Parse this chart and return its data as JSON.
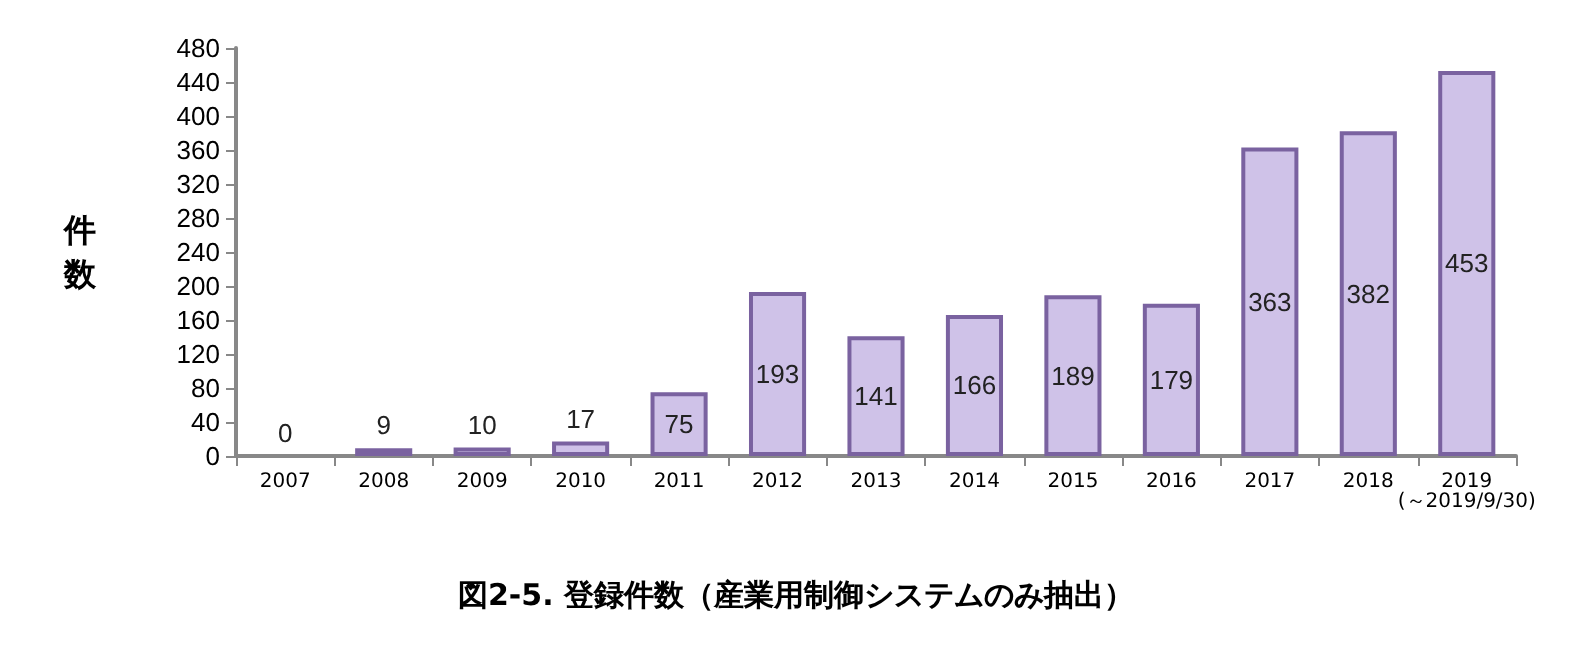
{
  "chart_data": {
    "type": "bar",
    "title": "図2-5. 登録件数（産業用制御システムのみ抽出）",
    "ylabel": "件数",
    "categories": [
      "2007",
      "2008",
      "2009",
      "2010",
      "2011",
      "2012",
      "2013",
      "2014",
      "2015",
      "2016",
      "2017",
      "2018",
      "2019\n(～2019/9/30)"
    ],
    "values": [
      0,
      9,
      10,
      17,
      75,
      193,
      141,
      166,
      189,
      179,
      363,
      382,
      453
    ],
    "color": "#cfc2e8",
    "ylim": [
      0,
      480
    ],
    "yticks": [
      0,
      40,
      80,
      120,
      160,
      200,
      240,
      280,
      320,
      360,
      400,
      440,
      480
    ],
    "data_labels": true,
    "grid": false
  }
}
